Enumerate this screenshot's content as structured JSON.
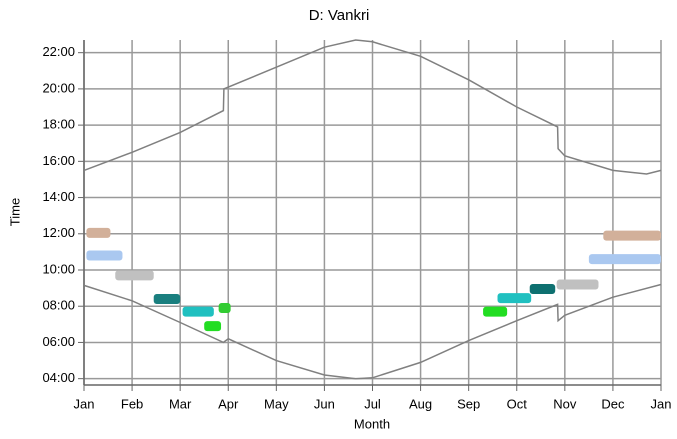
{
  "chart_data": {
    "type": "line",
    "title": "D: Vankri",
    "xlabel": "Month",
    "ylabel": "Time",
    "xlim": [
      0,
      12
    ],
    "ylim": [
      3.65,
      22.7
    ],
    "xticks": [
      {
        "value": 0,
        "label": "Jan"
      },
      {
        "value": 1,
        "label": "Feb"
      },
      {
        "value": 2,
        "label": "Mar"
      },
      {
        "value": 3,
        "label": "Apr"
      },
      {
        "value": 4,
        "label": "May"
      },
      {
        "value": 5,
        "label": "Jun"
      },
      {
        "value": 6,
        "label": "Jul"
      },
      {
        "value": 7,
        "label": "Aug"
      },
      {
        "value": 8,
        "label": "Sep"
      },
      {
        "value": 9,
        "label": "Oct"
      },
      {
        "value": 10,
        "label": "Nov"
      },
      {
        "value": 11,
        "label": "Dec"
      },
      {
        "value": 12,
        "label": "Jan"
      }
    ],
    "yticks": [
      {
        "value": 4,
        "label": "04:00"
      },
      {
        "value": 6,
        "label": "06:00"
      },
      {
        "value": 8,
        "label": "08:00"
      },
      {
        "value": 10,
        "label": "10:00"
      },
      {
        "value": 12,
        "label": "12:00"
      },
      {
        "value": 14,
        "label": "14:00"
      },
      {
        "value": 16,
        "label": "16:00"
      },
      {
        "value": 18,
        "label": "18:00"
      },
      {
        "value": 20,
        "label": "20:00"
      },
      {
        "value": 22,
        "label": "22:00"
      }
    ],
    "grid": true,
    "series": [
      {
        "color": "#808080",
        "x": [
          0,
          1,
          2,
          2.9,
          2.91,
          4,
          5,
          5.65,
          6,
          7,
          8,
          9,
          9.85,
          9.86,
          10,
          11,
          11.7,
          12
        ],
        "values": [
          15.5,
          16.5,
          17.6,
          18.8,
          20.0,
          21.2,
          22.3,
          22.7,
          22.6,
          21.8,
          20.5,
          19.0,
          17.9,
          16.7,
          16.3,
          15.5,
          15.3,
          15.5
        ]
      },
      {
        "color": "#808080",
        "x": [
          0,
          1,
          2,
          2.9,
          3,
          4,
          5,
          5.65,
          6,
          7,
          8,
          9,
          9.85,
          9.86,
          10,
          11,
          12
        ],
        "values": [
          9.15,
          8.3,
          7.1,
          6.0,
          6.2,
          5.0,
          4.2,
          4.0,
          4.05,
          4.9,
          6.1,
          7.2,
          8.1,
          7.2,
          7.5,
          8.5,
          9.2
        ]
      }
    ],
    "bands": [
      {
        "color": "#d2b09a",
        "x": [
          0.05,
          0.55
        ],
        "y": 12.05
      },
      {
        "color": "#aac8f0",
        "x": [
          0.05,
          0.8
        ],
        "y": 10.8
      },
      {
        "color": "#c0c0c0",
        "x": [
          0.65,
          1.45
        ],
        "y": 9.7
      },
      {
        "color": "#1a7f7f",
        "x": [
          1.45,
          2.0
        ],
        "y": 8.4
      },
      {
        "color": "#20c0c0",
        "x": [
          2.05,
          2.7
        ],
        "y": 7.7
      },
      {
        "color": "#33cc33",
        "x": [
          2.8,
          3.05
        ],
        "y": 7.9
      },
      {
        "color": "#22dd22",
        "x": [
          2.5,
          2.85
        ],
        "y": 6.9
      },
      {
        "color": "#22dd22",
        "x": [
          8.3,
          8.8
        ],
        "y": 7.7
      },
      {
        "color": "#20c0c0",
        "x": [
          8.6,
          9.3
        ],
        "y": 8.45
      },
      {
        "color": "#0e7070",
        "x": [
          9.27,
          9.8
        ],
        "y": 8.95
      },
      {
        "color": "#c0c0c0",
        "x": [
          9.83,
          10.7
        ],
        "y": 9.2
      },
      {
        "color": "#aac8f0",
        "x": [
          10.5,
          12
        ],
        "y": 10.6
      },
      {
        "color": "#d2b09a",
        "x": [
          10.8,
          12
        ],
        "y": 11.9
      }
    ]
  }
}
